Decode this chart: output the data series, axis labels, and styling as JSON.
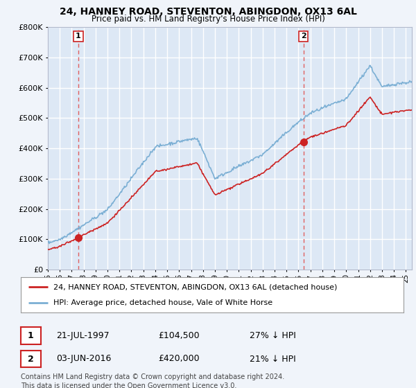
{
  "title_line1": "24, HANNEY ROAD, STEVENTON, ABINGDON, OX13 6AL",
  "title_line2": "Price paid vs. HM Land Registry's House Price Index (HPI)",
  "background_color": "#f0f4fa",
  "plot_bg_color": "#dde8f5",
  "ylim": [
    0,
    800000
  ],
  "yticks": [
    0,
    100000,
    200000,
    300000,
    400000,
    500000,
    600000,
    700000,
    800000
  ],
  "sale1_x": 1997.55,
  "sale1_y": 104500,
  "sale2_x": 2016.42,
  "sale2_y": 420000,
  "legend_line1": "24, HANNEY ROAD, STEVENTON, ABINGDON, OX13 6AL (detached house)",
  "legend_line2": "HPI: Average price, detached house, Vale of White Horse",
  "footnote": "Contains HM Land Registry data © Crown copyright and database right 2024.\nThis data is licensed under the Open Government Licence v3.0.",
  "hpi_color": "#7bafd4",
  "sale_color": "#cc2222",
  "dashed_color": "#e06060",
  "xlim_start": 1995,
  "xlim_end": 2025.5
}
